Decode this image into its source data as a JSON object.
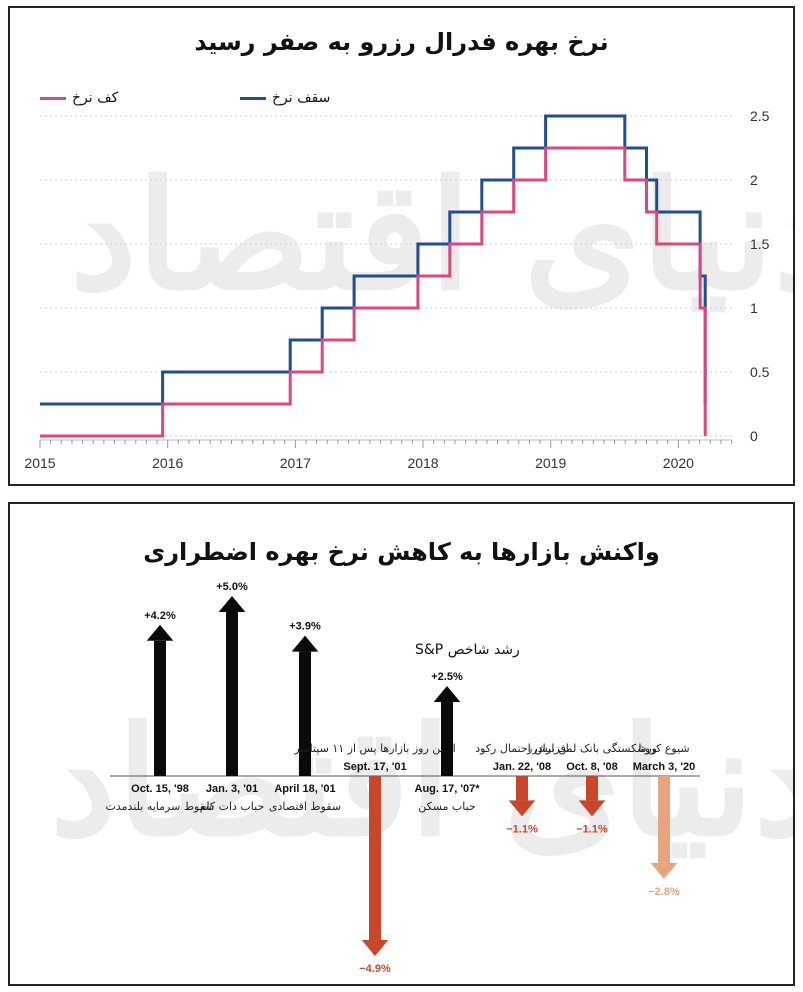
{
  "chart_data": [
    {
      "type": "line",
      "title": "نرخ بهره فدرال رزرو به صفر رسید",
      "legend": [
        {
          "name": "سقف نرخ",
          "color": "#1f4e99"
        },
        {
          "name": "کف نرخ",
          "color": "#e0457b"
        }
      ],
      "legend_position": "top-left",
      "x_ticks": [
        "2015",
        "2016",
        "2017",
        "2018",
        "2019",
        "2020"
      ],
      "y_ticks": [
        "0",
        "0.5",
        "1",
        "1.5",
        "2",
        "2.5"
      ],
      "xlim": [
        2015.0,
        2020.42
      ],
      "ylim": [
        0,
        2.5
      ],
      "grid": "horizontal dotted",
      "y_axis_side": "right",
      "series": [
        {
          "name": "سقف نرخ",
          "color": "#1f4e99",
          "x": [
            2015.0,
            2015.96,
            2015.96,
            2016.96,
            2016.96,
            2017.21,
            2017.21,
            2017.46,
            2017.46,
            2017.96,
            2017.96,
            2018.21,
            2018.21,
            2018.46,
            2018.46,
            2018.71,
            2018.71,
            2018.96,
            2018.96,
            2019.58,
            2019.58,
            2019.75,
            2019.75,
            2019.83,
            2019.83,
            2020.17,
            2020.17,
            2020.21,
            2020.21
          ],
          "y": [
            0.25,
            0.25,
            0.5,
            0.5,
            0.75,
            0.75,
            1.0,
            1.0,
            1.25,
            1.25,
            1.5,
            1.5,
            1.75,
            1.75,
            2.0,
            2.0,
            2.25,
            2.25,
            2.5,
            2.5,
            2.25,
            2.25,
            2.0,
            2.0,
            1.75,
            1.75,
            1.25,
            1.25,
            0.25
          ]
        },
        {
          "name": "کف نرخ",
          "color": "#e0457b",
          "x": [
            2015.0,
            2015.96,
            2015.96,
            2016.96,
            2016.96,
            2017.21,
            2017.21,
            2017.46,
            2017.46,
            2017.96,
            2017.96,
            2018.21,
            2018.21,
            2018.46,
            2018.46,
            2018.71,
            2018.71,
            2018.96,
            2018.96,
            2019.58,
            2019.58,
            2019.75,
            2019.75,
            2019.83,
            2019.83,
            2020.17,
            2020.17,
            2020.21,
            2020.21
          ],
          "y": [
            0.0,
            0.0,
            0.25,
            0.25,
            0.5,
            0.5,
            0.75,
            0.75,
            1.0,
            1.0,
            1.25,
            1.25,
            1.5,
            1.5,
            1.75,
            1.75,
            2.0,
            2.0,
            2.25,
            2.25,
            2.0,
            2.0,
            1.75,
            1.75,
            1.5,
            1.5,
            1.0,
            1.0,
            0.0
          ]
        }
      ]
    },
    {
      "type": "bar",
      "title": "واکنش بازارها به کاهش نرخ بهره اضطراری",
      "series_label": "رشد شاخص S&P",
      "events": [
        {
          "date": "Oct. 15, '98",
          "desc": "سقوط سرمایه بلندمدت",
          "value": 4.2,
          "label": "+4.2%",
          "style": "up"
        },
        {
          "date": "Jan. 3, '01",
          "desc": "حباب دات کام",
          "value": 5.0,
          "label": "+5.0%",
          "style": "up"
        },
        {
          "date": "April 18, '01",
          "desc": "سقوط اقتصادی",
          "value": 3.9,
          "label": "+3.9%",
          "style": "up"
        },
        {
          "date": "Sept. 17, '01",
          "desc": "اولین روز بازارها پس از ۱۱ سپتامبر",
          "value": -4.9,
          "label": "−4.9%",
          "style": "down"
        },
        {
          "date": "Aug. 17, '07*",
          "desc": "حباب مسکن",
          "value": 2.5,
          "label": "+2.5%",
          "style": "up"
        },
        {
          "date": "Jan. 22, '08",
          "desc": "افزایش احتمال رکود",
          "value": -1.1,
          "label": "−1.1%",
          "style": "down"
        },
        {
          "date": "Oct. 8, '08",
          "desc": "ورشکستگی بانک لمن برادرز",
          "value": -1.1,
          "label": "−1.1%",
          "style": "down"
        },
        {
          "date": "March 3, '20",
          "desc": "شیوع کرونا",
          "value": -2.8,
          "label": "−2.8%",
          "style": "fade"
        }
      ],
      "colors": {
        "up": "#0a0a0a",
        "down": "#c9462a",
        "fade": "#e8a47c"
      }
    }
  ],
  "watermark": "دنیای اقتصاد"
}
